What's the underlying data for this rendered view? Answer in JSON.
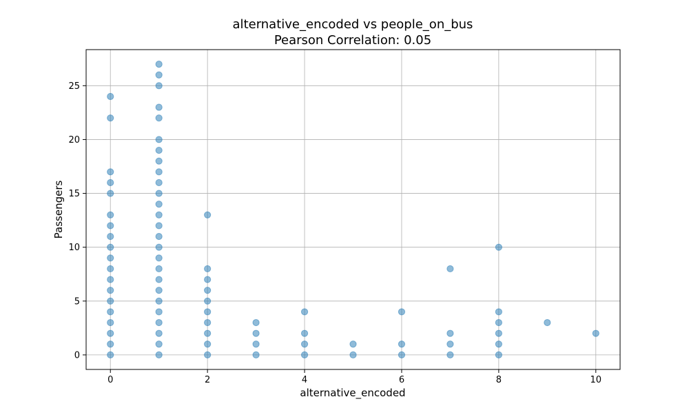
{
  "chart_data": {
    "type": "scatter",
    "title_lines": [
      "alternative_encoded vs people_on_bus",
      "Pearson Correlation: 0.05"
    ],
    "xlabel": "alternative_encoded",
    "ylabel": "Passengers",
    "xlim": [
      -0.5,
      10.5
    ],
    "ylim": [
      -1.35,
      28.35
    ],
    "x_ticks": [
      0,
      2,
      4,
      6,
      8,
      10
    ],
    "y_ticks": [
      0,
      5,
      10,
      15,
      20,
      25
    ],
    "grid": true,
    "point_color": "#1f77b4",
    "point_alpha": 0.5,
    "points": [
      {
        "x": 0,
        "y": 0
      },
      {
        "x": 0,
        "y": 1
      },
      {
        "x": 0,
        "y": 2
      },
      {
        "x": 0,
        "y": 3
      },
      {
        "x": 0,
        "y": 4
      },
      {
        "x": 0,
        "y": 5
      },
      {
        "x": 0,
        "y": 6
      },
      {
        "x": 0,
        "y": 7
      },
      {
        "x": 0,
        "y": 8
      },
      {
        "x": 0,
        "y": 9
      },
      {
        "x": 0,
        "y": 10
      },
      {
        "x": 0,
        "y": 11
      },
      {
        "x": 0,
        "y": 12
      },
      {
        "x": 0,
        "y": 13
      },
      {
        "x": 0,
        "y": 15
      },
      {
        "x": 0,
        "y": 16
      },
      {
        "x": 0,
        "y": 17
      },
      {
        "x": 0,
        "y": 22
      },
      {
        "x": 0,
        "y": 24
      },
      {
        "x": 1,
        "y": 0
      },
      {
        "x": 1,
        "y": 1
      },
      {
        "x": 1,
        "y": 2
      },
      {
        "x": 1,
        "y": 3
      },
      {
        "x": 1,
        "y": 4
      },
      {
        "x": 1,
        "y": 5
      },
      {
        "x": 1,
        "y": 6
      },
      {
        "x": 1,
        "y": 7
      },
      {
        "x": 1,
        "y": 8
      },
      {
        "x": 1,
        "y": 9
      },
      {
        "x": 1,
        "y": 10
      },
      {
        "x": 1,
        "y": 11
      },
      {
        "x": 1,
        "y": 12
      },
      {
        "x": 1,
        "y": 13
      },
      {
        "x": 1,
        "y": 14
      },
      {
        "x": 1,
        "y": 15
      },
      {
        "x": 1,
        "y": 16
      },
      {
        "x": 1,
        "y": 17
      },
      {
        "x": 1,
        "y": 18
      },
      {
        "x": 1,
        "y": 19
      },
      {
        "x": 1,
        "y": 20
      },
      {
        "x": 1,
        "y": 22
      },
      {
        "x": 1,
        "y": 23
      },
      {
        "x": 1,
        "y": 25
      },
      {
        "x": 1,
        "y": 26
      },
      {
        "x": 1,
        "y": 27
      },
      {
        "x": 2,
        "y": 0
      },
      {
        "x": 2,
        "y": 1
      },
      {
        "x": 2,
        "y": 2
      },
      {
        "x": 2,
        "y": 3
      },
      {
        "x": 2,
        "y": 4
      },
      {
        "x": 2,
        "y": 5
      },
      {
        "x": 2,
        "y": 6
      },
      {
        "x": 2,
        "y": 7
      },
      {
        "x": 2,
        "y": 8
      },
      {
        "x": 2,
        "y": 13
      },
      {
        "x": 3,
        "y": 0
      },
      {
        "x": 3,
        "y": 1
      },
      {
        "x": 3,
        "y": 2
      },
      {
        "x": 3,
        "y": 3
      },
      {
        "x": 4,
        "y": 0
      },
      {
        "x": 4,
        "y": 1
      },
      {
        "x": 4,
        "y": 2
      },
      {
        "x": 4,
        "y": 4
      },
      {
        "x": 5,
        "y": 0
      },
      {
        "x": 5,
        "y": 1
      },
      {
        "x": 6,
        "y": 0
      },
      {
        "x": 6,
        "y": 1
      },
      {
        "x": 6,
        "y": 4
      },
      {
        "x": 7,
        "y": 0
      },
      {
        "x": 7,
        "y": 1
      },
      {
        "x": 7,
        "y": 2
      },
      {
        "x": 7,
        "y": 8
      },
      {
        "x": 8,
        "y": 0
      },
      {
        "x": 8,
        "y": 1
      },
      {
        "x": 8,
        "y": 2
      },
      {
        "x": 8,
        "y": 3
      },
      {
        "x": 8,
        "y": 4
      },
      {
        "x": 8,
        "y": 10
      },
      {
        "x": 9,
        "y": 3
      },
      {
        "x": 10,
        "y": 2
      }
    ]
  }
}
